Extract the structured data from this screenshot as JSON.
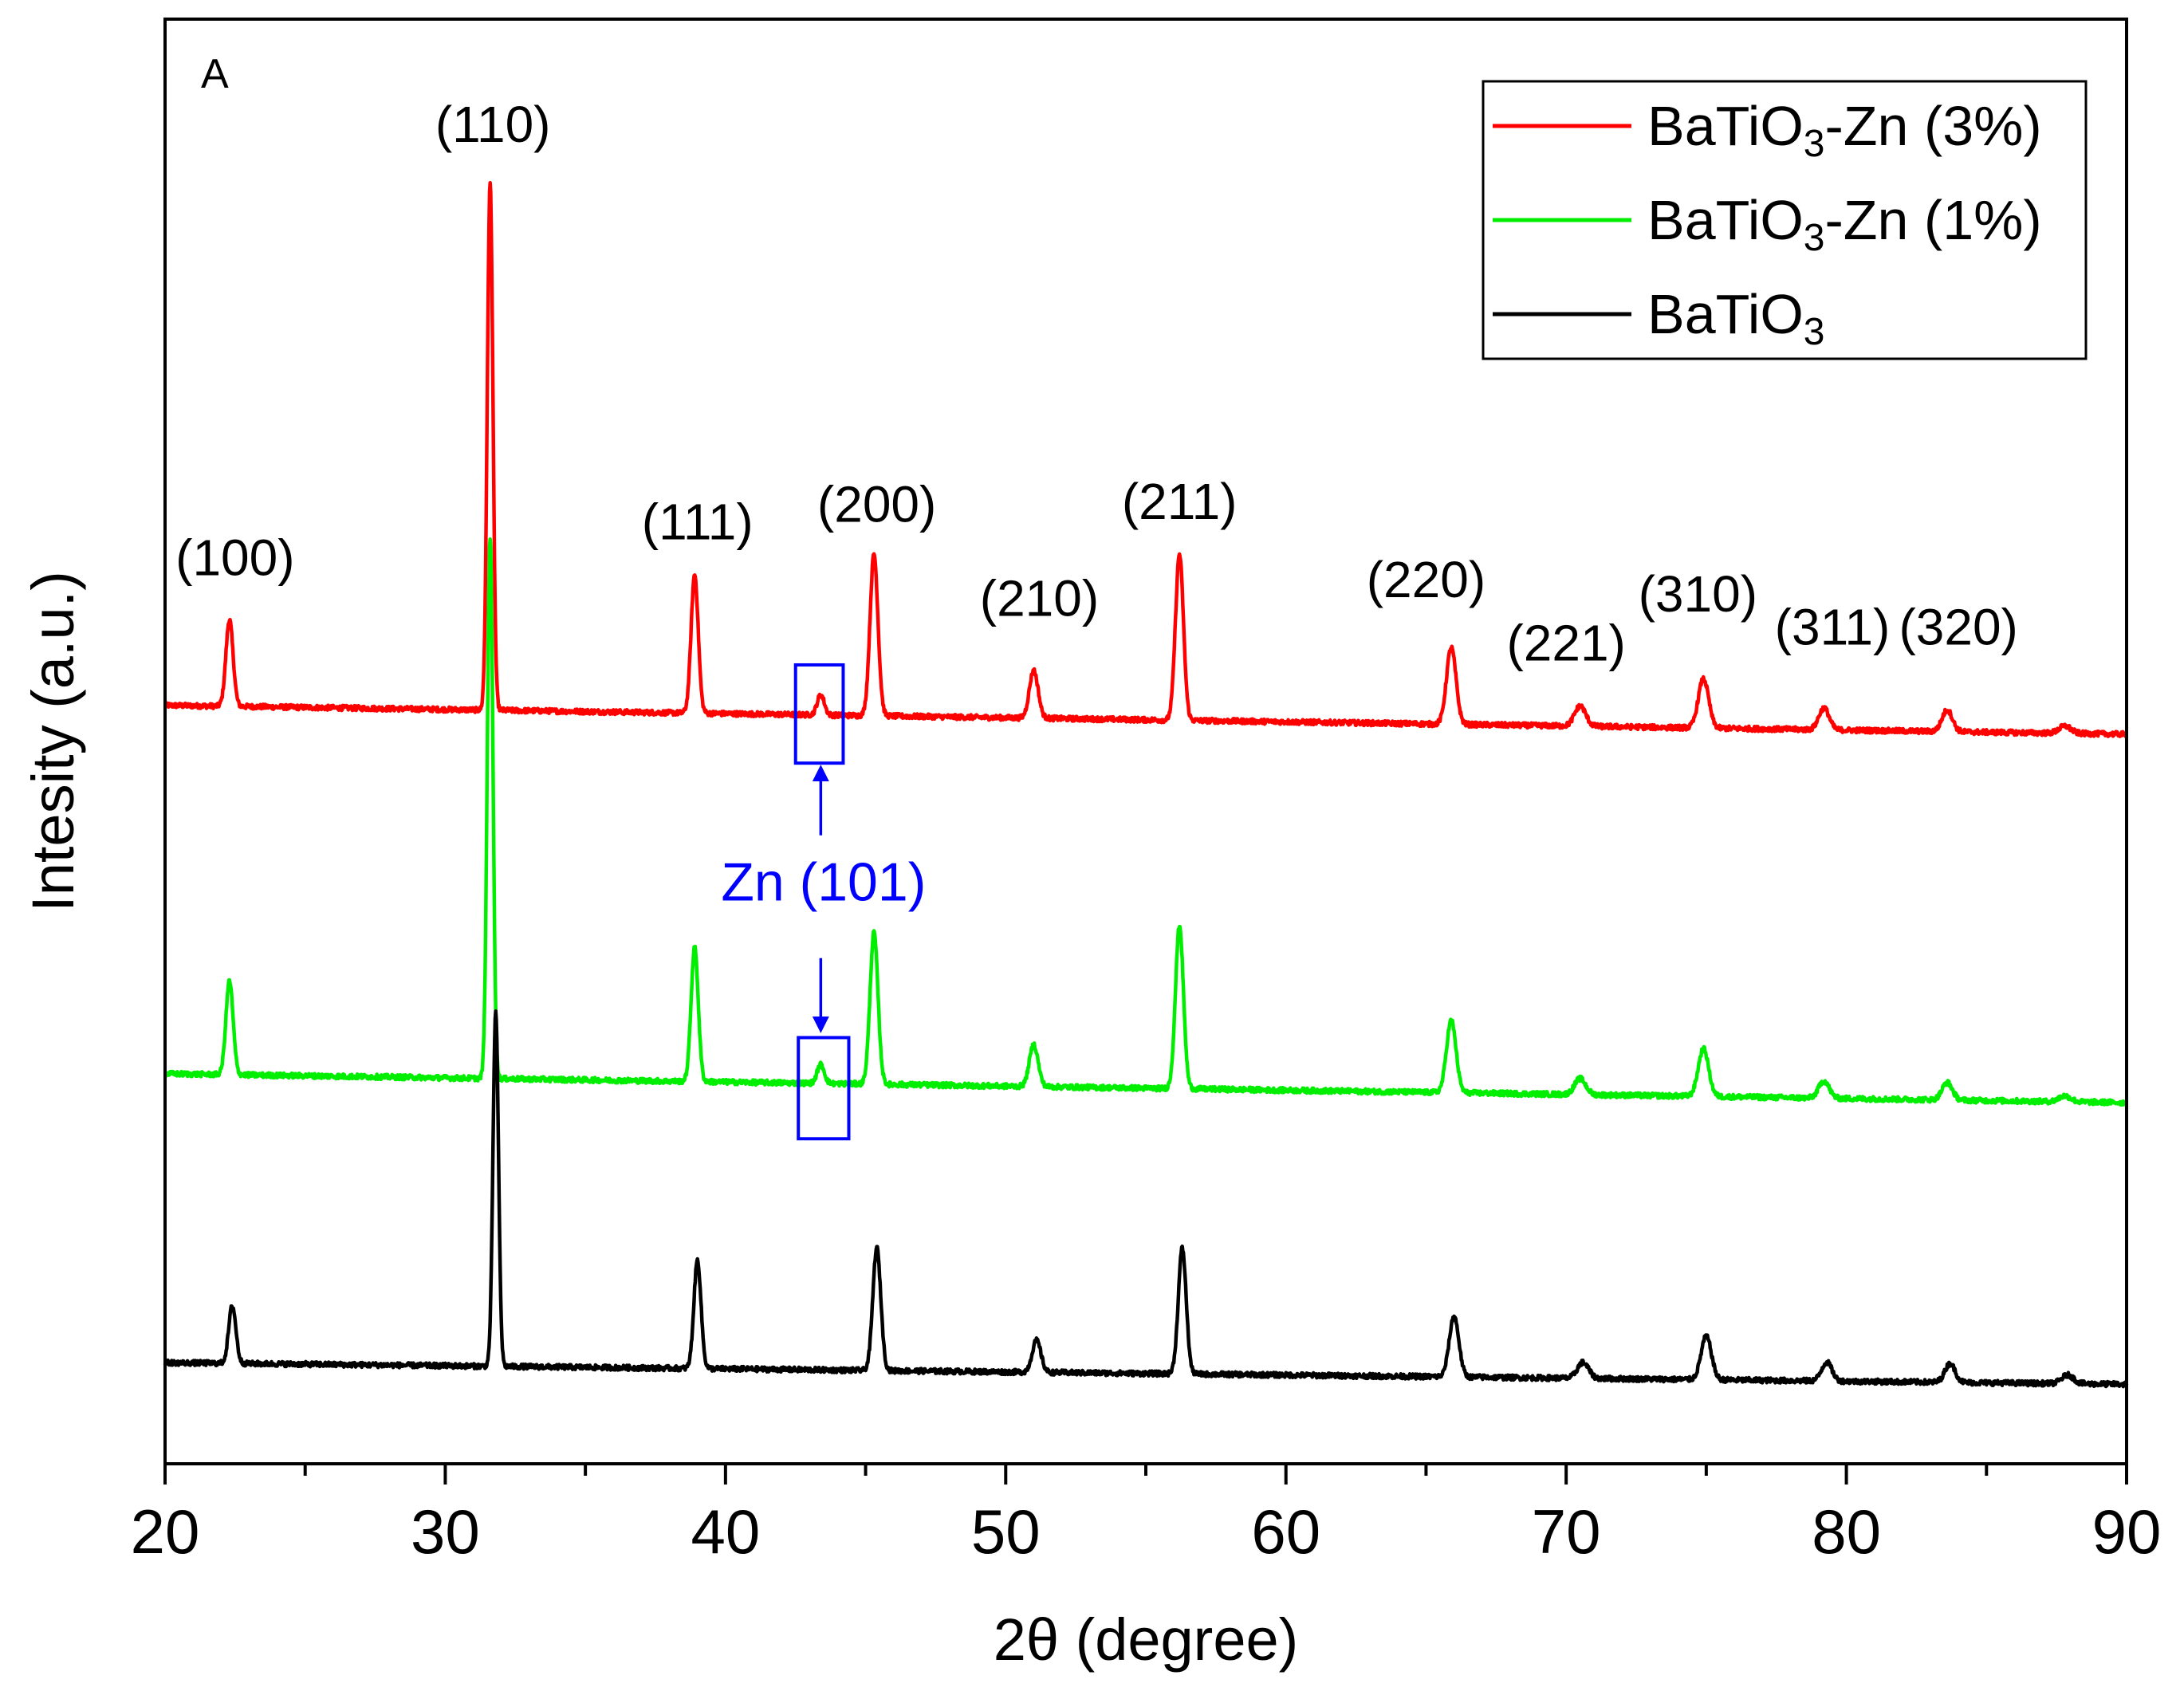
{
  "chart_data": {
    "type": "line",
    "panel_label": "A",
    "xlabel": "2θ (degree)",
    "ylabel": "Intesity (a.u.)",
    "xlim": [
      20,
      90
    ],
    "ylim": [
      0,
      100
    ],
    "x_ticks": [
      "20",
      "30",
      "40",
      "50",
      "60",
      "70",
      "80",
      "90"
    ],
    "y_ticks_shown": false,
    "legend_position": "top-right",
    "legend": [
      {
        "series": "BaTiO3-Zn (3%)",
        "base": "BaTiO",
        "sub": "3",
        "suffix": "-Zn (3%)",
        "color": "#ff0000"
      },
      {
        "series": "BaTiO3-Zn (1%)",
        "base": "BaTiO",
        "sub": "3",
        "suffix": "-Zn (1%)",
        "color": "#00ee00"
      },
      {
        "series": "BaTiO3",
        "base": "BaTiO",
        "sub": "3",
        "suffix": "",
        "color": "#000000"
      }
    ],
    "series": [
      {
        "name": "BaTiO3-Zn (3%)",
        "color": "#ff0000",
        "baseline_start": 52.5,
        "baseline_end": 50.5,
        "peaks": [
          {
            "x": 22.3,
            "h": 6.0,
            "w": 0.18
          },
          {
            "x": 31.6,
            "h": 36.5,
            "w": 0.14
          },
          {
            "x": 38.9,
            "h": 9.6,
            "w": 0.18
          },
          {
            "x": 43.4,
            "h": 1.4,
            "w": 0.18
          },
          {
            "x": 45.3,
            "h": 11.2,
            "w": 0.2
          },
          {
            "x": 51.0,
            "h": 3.3,
            "w": 0.22
          },
          {
            "x": 56.2,
            "h": 11.5,
            "w": 0.2
          },
          {
            "x": 65.9,
            "h": 5.3,
            "w": 0.24
          },
          {
            "x": 70.5,
            "h": 1.4,
            "w": 0.28
          },
          {
            "x": 74.9,
            "h": 3.4,
            "w": 0.26
          },
          {
            "x": 79.2,
            "h": 1.5,
            "w": 0.26
          },
          {
            "x": 83.6,
            "h": 1.5,
            "w": 0.26
          },
          {
            "x": 87.8,
            "h": 0.5,
            "w": 0.3
          }
        ]
      },
      {
        "name": "BaTiO3-Zn (1%)",
        "color": "#00ee00",
        "baseline_start": 27.0,
        "baseline_end": 25.0,
        "peaks": [
          {
            "x": 22.3,
            "h": 6.5,
            "w": 0.18
          },
          {
            "x": 31.6,
            "h": 37.5,
            "w": 0.14
          },
          {
            "x": 38.9,
            "h": 9.3,
            "w": 0.18
          },
          {
            "x": 43.4,
            "h": 1.3,
            "w": 0.18
          },
          {
            "x": 45.3,
            "h": 10.5,
            "w": 0.2
          },
          {
            "x": 51.0,
            "h": 2.9,
            "w": 0.22
          },
          {
            "x": 56.2,
            "h": 11.3,
            "w": 0.2
          },
          {
            "x": 65.9,
            "h": 5.0,
            "w": 0.24
          },
          {
            "x": 70.5,
            "h": 1.1,
            "w": 0.28
          },
          {
            "x": 74.9,
            "h": 3.3,
            "w": 0.26
          },
          {
            "x": 79.2,
            "h": 1.2,
            "w": 0.26
          },
          {
            "x": 83.6,
            "h": 1.2,
            "w": 0.26
          },
          {
            "x": 87.8,
            "h": 0.4,
            "w": 0.3
          }
        ]
      },
      {
        "name": "BaTiO3",
        "color": "#000000",
        "baseline_start": 7.0,
        "baseline_end": 5.5,
        "peaks": [
          {
            "x": 22.4,
            "h": 4.0,
            "w": 0.18
          },
          {
            "x": 31.8,
            "h": 24.5,
            "w": 0.14
          },
          {
            "x": 39.0,
            "h": 7.5,
            "w": 0.18
          },
          {
            "x": 45.4,
            "h": 8.5,
            "w": 0.2
          },
          {
            "x": 51.1,
            "h": 2.2,
            "w": 0.22
          },
          {
            "x": 56.3,
            "h": 8.7,
            "w": 0.2
          },
          {
            "x": 66.0,
            "h": 4.2,
            "w": 0.24
          },
          {
            "x": 70.6,
            "h": 1.1,
            "w": 0.28
          },
          {
            "x": 75.0,
            "h": 3.0,
            "w": 0.26
          },
          {
            "x": 79.3,
            "h": 1.3,
            "w": 0.26
          },
          {
            "x": 83.7,
            "h": 1.3,
            "w": 0.26
          },
          {
            "x": 87.9,
            "h": 0.6,
            "w": 0.3
          }
        ]
      }
    ],
    "annotations": [
      {
        "text": "(100)",
        "x": 22.5,
        "y": 61.5
      },
      {
        "text": "(110)",
        "x": 31.7,
        "y": 91.5
      },
      {
        "text": "(111)",
        "x": 39.0,
        "y": 64.0
      },
      {
        "text": "(200)",
        "x": 45.4,
        "y": 65.2
      },
      {
        "text": "(210)",
        "x": 51.2,
        "y": 58.7
      },
      {
        "text": "(211)",
        "x": 56.2,
        "y": 65.4
      },
      {
        "text": "(220)",
        "x": 65.0,
        "y": 60.0
      },
      {
        "text": "(221)",
        "x": 70.0,
        "y": 55.6
      },
      {
        "text": "(310)",
        "x": 74.7,
        "y": 59.0
      },
      {
        "text": "(311)",
        "x": 79.5,
        "y": 56.7
      },
      {
        "text": "(320)",
        "x": 84.0,
        "y": 56.7
      }
    ],
    "zn_annotation": {
      "text": "Zn (101)",
      "color": "#0000ff",
      "label_x": 43.5,
      "label_y": 39.0,
      "box_top": {
        "x0": 42.5,
        "x1": 44.2,
        "y0": 48.5,
        "y1": 55.3
      },
      "box_bottom": {
        "x0": 42.6,
        "x1": 44.4,
        "y0": 22.5,
        "y1": 29.5
      },
      "arrow_up": {
        "x": 43.4,
        "from_y": 43.5,
        "to_y": 48.2
      },
      "arrow_down": {
        "x": 43.4,
        "from_y": 35.0,
        "to_y": 30.0
      }
    }
  }
}
